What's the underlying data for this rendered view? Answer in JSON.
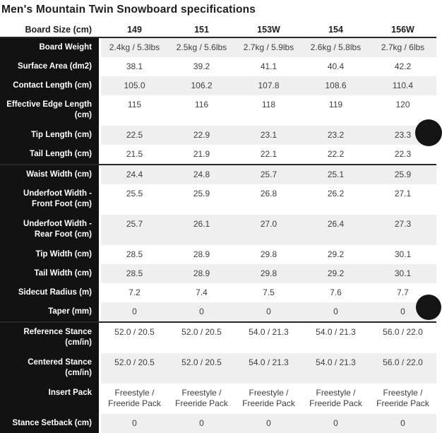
{
  "title": "Men's Mountain Twin Snowboard specifications",
  "table": {
    "header_label": "Board Size (cm)",
    "sizes": [
      "149",
      "151",
      "153W",
      "154",
      "156W"
    ],
    "rows": [
      {
        "label": "Board Weight",
        "values": [
          "2.4kg / 5.3lbs",
          "2.5kg / 5.6lbs",
          "2.7kg / 5.9lbs",
          "2.6kg / 5.8lbs",
          "2.7kg / 6lbs"
        ]
      },
      {
        "label": "Surface Area (dm2)",
        "values": [
          "38.1",
          "39.2",
          "41.1",
          "40.4",
          "42.2"
        ]
      },
      {
        "label": "Contact Length (cm)",
        "values": [
          "105.0",
          "106.2",
          "107.8",
          "108.6",
          "110.4"
        ]
      },
      {
        "label": "Effective Edge Length (cm)",
        "values": [
          "115",
          "116",
          "118",
          "119",
          "120"
        ],
        "tall": true
      },
      {
        "label": "Tip Length (cm)",
        "values": [
          "22.5",
          "22.9",
          "23.1",
          "23.2",
          "23.3"
        ]
      },
      {
        "label": "Tail Length (cm)",
        "values": [
          "21.5",
          "21.9",
          "22.1",
          "22.2",
          "22.3"
        ]
      },
      {
        "label": "Waist Width (cm)",
        "values": [
          "24.4",
          "24.8",
          "25.7",
          "25.1",
          "25.9"
        ],
        "section_start": true
      },
      {
        "label": "Underfoot Width - Front Foot (cm)",
        "values": [
          "25.5",
          "25.9",
          "26.8",
          "26.2",
          "27.1"
        ],
        "tall": true
      },
      {
        "label": "Underfoot Width - Rear Foot (cm)",
        "values": [
          "25.7",
          "26.1",
          "27.0",
          "26.4",
          "27.3"
        ],
        "tall": true
      },
      {
        "label": "Tip Width (cm)",
        "values": [
          "28.5",
          "28.9",
          "29.8",
          "29.2",
          "30.1"
        ]
      },
      {
        "label": "Tail Width (cm)",
        "values": [
          "28.5",
          "28.9",
          "29.8",
          "29.2",
          "30.1"
        ]
      },
      {
        "label": "Sidecut Radius (m)",
        "values": [
          "7.2",
          "7.4",
          "7.5",
          "7.6",
          "7.7"
        ]
      },
      {
        "label": "Taper (mm)",
        "values": [
          "0",
          "0",
          "0",
          "0",
          "0"
        ]
      },
      {
        "label": "Reference Stance (cm/in)",
        "values": [
          "52.0 / 20.5",
          "52.0 / 20.5",
          "54.0 / 21.3",
          "54.0 / 21.3",
          "56.0 / 22.0"
        ],
        "tall": true,
        "section_start": true
      },
      {
        "label": "Centered Stance (cm/in)",
        "values": [
          "52.0 / 20.5",
          "52.0 / 20.5",
          "54.0 / 21.3",
          "54.0 / 21.3",
          "56.0 / 22.0"
        ],
        "tall": true
      },
      {
        "label": "Insert Pack",
        "values": [
          "Freestyle / Freeride Pack",
          "Freestyle / Freeride Pack",
          "Freestyle / Freeride Pack",
          "Freestyle / Freeride Pack",
          "Freestyle / Freeride Pack"
        ],
        "tall": true
      },
      {
        "label": "Stance Setback (cm)",
        "values": [
          "0",
          "0",
          "0",
          "0",
          "0"
        ]
      }
    ]
  },
  "colors": {
    "label_column_bg": "#121212",
    "zebra_row_bg": "#efefef",
    "section_divider": "#262626",
    "value_text": "#3e3e3e",
    "floating_button_bg": "#141414"
  },
  "floating_buttons": [
    {
      "position": "upper-right-edge"
    },
    {
      "position": "lower-right-edge"
    }
  ]
}
